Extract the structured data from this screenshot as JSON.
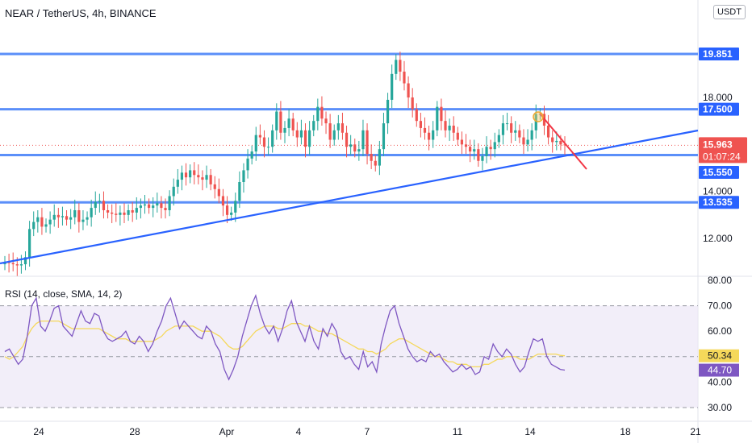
{
  "header": {
    "title": "NEAR / TetherUS, 4h, BINANCE",
    "currency": "USDT"
  },
  "rsi_header": {
    "title": "RSI (14, close, SMA, 14, 2)"
  },
  "colors": {
    "up": "#26a69a",
    "down": "#ef5350",
    "level_line": "#5b8ff9",
    "level_label": "#2962ff",
    "trendline": "#2962ff",
    "red_trendline": "#f23645",
    "rsi_line": "#7e57c2",
    "rsi_ma": "#f5d85a",
    "rsi_band": "#ede7f6",
    "price_label_bg": "#ef5350",
    "current_price_line": "#ef5350"
  },
  "chart_data": [
    {
      "type": "candlestick",
      "symbol": "NEAR / TetherUS",
      "interval": "4h",
      "exchange": "BINANCE",
      "x_ticks": [
        "24",
        "28",
        "Apr",
        "4",
        "7",
        "11",
        "14",
        "18",
        "21"
      ],
      "y_ticks": [
        "12.000",
        "14.000",
        "18.000"
      ],
      "horizontal_levels": [
        19.851,
        17.5,
        15.55,
        13.535
      ],
      "current_price": 15.963,
      "countdown": "01:07:24",
      "trendline": [
        [
          10.7,
          16.8
        ]
      ],
      "ohlc_close": [
        11.0,
        10.95,
        10.9,
        10.85,
        10.9,
        11.2,
        12.4,
        12.7,
        12.9,
        12.5,
        12.6,
        12.8,
        13.0,
        12.9,
        12.95,
        12.8,
        12.9,
        13.2,
        12.7,
        12.8,
        12.9,
        13.3,
        13.55,
        13.6,
        13.2,
        13.1,
        13.05,
        13.0,
        13.1,
        13.0,
        13.2,
        13.1,
        13.3,
        13.4,
        13.45,
        13.3,
        13.4,
        13.5,
        13.3,
        13.2,
        13.8,
        14.2,
        14.5,
        14.8,
        14.6,
        14.9,
        14.7,
        14.6,
        14.5,
        14.7,
        14.3,
        14.1,
        13.8,
        13.4,
        13.0,
        13.1,
        13.6,
        14.4,
        14.9,
        15.4,
        15.7,
        16.4,
        16.3,
        15.9,
        15.9,
        16.6,
        17.4,
        16.5,
        16.7,
        17.1,
        16.6,
        16.3,
        16.6,
        15.9,
        16.6,
        17.0,
        17.6,
        17.1,
        16.9,
        16.2,
        16.6,
        16.9,
        16.5,
        15.9,
        16.0,
        15.7,
        15.8,
        16.6,
        15.6,
        15.3,
        15.1,
        15.8,
        16.9,
        17.9,
        19.0,
        19.6,
        19.1,
        18.6,
        18.0,
        17.5,
        17.0,
        16.7,
        16.5,
        16.2,
        16.6,
        17.6,
        17.0,
        16.6,
        16.8,
        16.5,
        16.2,
        16.0,
        15.9,
        15.7,
        15.8,
        15.3,
        15.5,
        15.9,
        15.8,
        16.1,
        16.4,
        16.9,
        16.9,
        16.5,
        16.6,
        16.3,
        16.0,
        16.2,
        16.6,
        17.3,
        17.3,
        16.8,
        16.3,
        16.1,
        16.15,
        16.0,
        15.963
      ],
      "rsi": {
        "title": "RSI (14, close, SMA, 14, 2)",
        "y_ticks": [
          "30.00",
          "40.00",
          "50.00",
          "60.00",
          "70.00",
          "80.00"
        ],
        "band": [
          30,
          70
        ],
        "mid": 50,
        "rsi_value": "44.70",
        "ma_value": "50.34",
        "values": [
          52,
          53,
          50,
          47,
          49,
          58,
          70,
          73,
          62,
          60,
          64,
          69,
          70,
          62,
          60,
          58,
          63,
          68,
          64,
          63,
          67,
          66,
          60,
          57,
          56,
          57,
          58,
          60,
          56,
          55,
          58,
          56,
          52,
          55,
          60,
          64,
          70,
          73,
          67,
          61,
          64,
          62,
          60,
          58,
          57,
          62,
          60,
          55,
          52,
          45,
          41,
          45,
          50,
          58,
          64,
          70,
          74,
          67,
          62,
          59,
          62,
          56,
          61,
          68,
          72,
          64,
          60,
          56,
          62,
          56,
          53,
          61,
          58,
          63,
          60,
          52,
          49,
          50,
          47,
          45,
          52,
          46,
          48,
          44,
          55,
          62,
          68,
          70,
          63,
          58,
          53,
          50,
          48,
          49,
          48,
          52,
          50,
          51,
          48,
          46,
          44,
          45,
          47,
          45,
          46,
          43,
          44,
          50,
          49,
          55,
          52,
          50,
          53,
          51,
          47,
          44,
          46,
          52,
          57,
          56,
          57,
          50,
          47,
          46,
          45,
          44.7
        ],
        "ma_values": [
          50,
          49,
          50,
          52,
          54,
          58,
          61,
          63,
          64,
          64,
          64,
          64,
          64,
          63,
          62,
          61,
          61,
          61,
          61,
          61,
          61,
          61,
          60,
          59,
          58,
          57,
          57,
          57,
          56,
          56,
          56,
          56,
          56,
          56,
          57,
          58,
          60,
          61,
          62,
          62,
          62,
          62,
          62,
          61,
          60,
          60,
          60,
          59,
          58,
          56,
          54,
          53,
          53,
          54,
          56,
          58,
          60,
          61,
          62,
          62,
          62,
          61,
          61,
          62,
          63,
          63,
          63,
          62,
          62,
          61,
          60,
          60,
          59,
          59,
          58,
          57,
          56,
          55,
          54,
          53,
          53,
          52,
          52,
          51,
          52,
          53,
          55,
          56,
          57,
          57,
          56,
          55,
          54,
          53,
          52,
          51,
          50,
          50,
          49,
          48,
          48,
          47,
          47,
          47,
          46,
          46,
          46,
          47,
          47,
          48,
          49,
          49,
          50,
          50,
          50,
          49,
          49,
          49,
          50,
          51,
          51,
          51,
          51,
          51,
          50.5,
          50.34
        ]
      }
    }
  ]
}
